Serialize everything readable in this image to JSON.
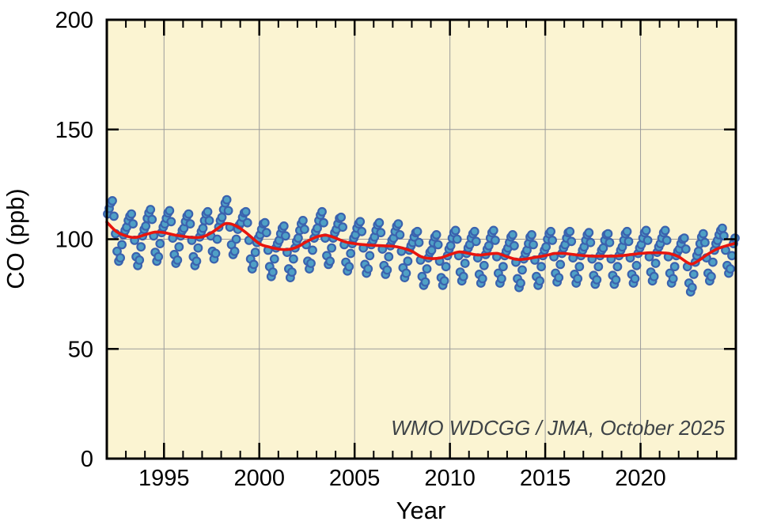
{
  "chart_data": {
    "type": "scatter",
    "title": "",
    "xlabel": "Year",
    "ylabel": "CO (ppb)",
    "annotation": "WMO WDCGG / JMA, October 2025",
    "xlim": [
      1992,
      2025
    ],
    "ylim": [
      0,
      200
    ],
    "grid": {
      "x": [
        1995,
        2000,
        2005,
        2010,
        2015,
        2020
      ],
      "y": [
        50,
        100,
        150
      ]
    },
    "x_major_ticks": [
      {
        "value": 1995,
        "label": "1995"
      },
      {
        "value": 2000,
        "label": "2000"
      },
      {
        "value": 2005,
        "label": "2005"
      },
      {
        "value": 2010,
        "label": "2010"
      },
      {
        "value": 2015,
        "label": "2015"
      },
      {
        "value": 2020,
        "label": "2020"
      }
    ],
    "x_minor_tick_years": [
      1993,
      1994,
      1996,
      1997,
      1998,
      1999,
      2001,
      2002,
      2003,
      2004,
      2006,
      2007,
      2008,
      2009,
      2011,
      2012,
      2013,
      2014,
      2016,
      2017,
      2018,
      2019,
      2021,
      2022,
      2023,
      2024
    ],
    "y_major_ticks": [
      {
        "value": 0,
        "label": "0"
      },
      {
        "value": 50,
        "label": "50"
      },
      {
        "value": 100,
        "label": "100"
      },
      {
        "value": 150,
        "label": "150"
      },
      {
        "value": 200,
        "label": "200"
      }
    ],
    "colors": {
      "plot_background": "#FBF4D2",
      "marker_fill": "#4FA0C6",
      "marker_edge": "#3A62AE",
      "trend_line": "#E8150D",
      "gridline": "#9B9B9B",
      "frame": "#000000",
      "annotation_text": "#3E4347"
    },
    "series": [
      {
        "name": "monthly-mean-co",
        "type": "scatter",
        "monthly_values_by_year": {
          "1992": [
            111.5,
            114,
            116.5,
            117.5,
            110.5,
            102.5,
            94.5,
            90,
            91.5,
            97.5,
            102,
            104
          ],
          "1993": [
            105.5,
            108.5,
            110.5,
            111.5,
            107,
            99.5,
            92,
            88,
            90.5,
            96.5,
            101.5,
            104.5
          ],
          "1994": [
            106,
            109.5,
            112,
            113.5,
            109,
            101.5,
            94,
            90,
            92,
            98,
            103,
            105.5
          ],
          "1995": [
            107,
            109.5,
            112,
            113,
            108,
            100.5,
            93,
            89,
            90.5,
            96.5,
            101.5,
            104
          ],
          "1996": [
            105,
            108,
            110.5,
            111.5,
            107,
            99.5,
            92,
            88,
            90,
            96,
            101,
            103.5
          ],
          "1997": [
            105,
            108.5,
            111.5,
            112.5,
            108.5,
            101.5,
            94.5,
            91,
            93.5,
            100,
            105.5,
            108.5
          ],
          "1998": [
            110,
            113.5,
            116.5,
            118,
            113,
            105.5,
            97.5,
            93,
            94.5,
            100,
            104.5,
            106.5
          ],
          "1999": [
            107.5,
            110,
            112,
            112.5,
            107.5,
            99.5,
            91,
            86.5,
            88.5,
            94,
            98.5,
            100.5
          ],
          "2000": [
            102,
            104.5,
            107,
            107.5,
            103,
            95,
            87.5,
            83,
            85,
            91,
            96,
            98
          ],
          "2001": [
            99.5,
            102.5,
            105,
            106,
            101.5,
            94,
            86.5,
            82.5,
            85,
            91,
            96,
            99
          ],
          "2002": [
            100.5,
            104,
            107,
            108.5,
            104.5,
            97.5,
            90,
            86.5,
            89,
            95,
            100.5,
            103.5
          ],
          "2003": [
            105,
            108.5,
            111,
            112.5,
            107.5,
            100.5,
            92.5,
            88.5,
            90,
            96,
            100.5,
            103
          ],
          "2004": [
            104.5,
            107,
            109.5,
            110,
            105.5,
            97.5,
            89.5,
            85.5,
            87.5,
            93.5,
            98,
            100.5
          ],
          "2005": [
            102,
            105,
            107,
            108,
            103.5,
            96,
            88.5,
            84.5,
            86.5,
            92.5,
            97.5,
            99.5
          ],
          "2006": [
            101,
            104,
            106.5,
            107.5,
            103,
            95.5,
            88,
            84,
            86,
            92,
            97,
            99.5
          ],
          "2007": [
            100.5,
            103.5,
            106,
            107,
            102,
            94.5,
            87,
            82.5,
            84.5,
            90,
            95,
            97
          ],
          "2008": [
            98.5,
            101,
            103,
            103.5,
            98.5,
            90.5,
            83,
            79,
            80.5,
            86.5,
            91.5,
            94
          ],
          "2009": [
            95,
            98.5,
            101,
            102,
            97.5,
            90,
            82.5,
            79,
            81,
            87.5,
            92.5,
            95.5
          ],
          "2010": [
            97,
            100.5,
            103,
            104,
            100,
            92.5,
            85,
            81,
            83,
            89,
            93.5,
            96
          ],
          "2011": [
            97.5,
            100.5,
            102.5,
            103.5,
            99,
            91.5,
            84,
            80,
            82,
            88,
            93,
            95.5
          ],
          "2012": [
            97,
            100.5,
            103,
            104,
            99.5,
            92,
            84.5,
            80,
            82,
            87.5,
            92.5,
            94.5
          ],
          "2013": [
            96,
            98.5,
            101,
            102,
            97,
            89.5,
            82,
            78,
            80,
            86,
            91,
            93.5
          ],
          "2014": [
            95,
            98,
            101,
            102,
            97.5,
            90.5,
            83,
            79,
            81,
            87.5,
            92.5,
            95
          ],
          "2015": [
            96.5,
            100,
            102.5,
            103.5,
            99.5,
            92,
            84.5,
            80.5,
            82.5,
            88.5,
            93.5,
            96
          ],
          "2016": [
            97.5,
            100.5,
            103,
            103.5,
            99,
            91.5,
            84,
            80,
            82,
            87.5,
            92.5,
            95
          ],
          "2017": [
            96.5,
            99.5,
            102,
            103,
            98.5,
            91,
            83.5,
            79.5,
            81.5,
            87.5,
            92.5,
            95
          ],
          "2018": [
            96,
            99.5,
            102,
            102.5,
            98.5,
            91,
            83.5,
            79.5,
            81.5,
            87.5,
            92.5,
            95
          ],
          "2019": [
            96.5,
            99.5,
            102.5,
            103.5,
            99,
            91.5,
            84,
            80,
            82,
            88,
            93.5,
            96
          ],
          "2020": [
            97.5,
            100.5,
            103,
            104,
            99.5,
            92,
            85,
            81,
            83,
            89,
            94,
            96.5
          ],
          "2021": [
            98,
            100.5,
            103,
            104,
            99.5,
            92,
            84.5,
            80,
            82,
            87.5,
            92.5,
            94.5
          ],
          "2022": [
            95.5,
            98,
            100,
            100.5,
            95.5,
            87.5,
            80,
            76,
            78,
            84,
            89.5,
            92.5
          ],
          "2023": [
            94.5,
            98,
            101,
            102.5,
            98.5,
            91.5,
            84.5,
            81,
            83,
            89.5,
            95,
            98
          ],
          "2024": [
            99.5,
            102,
            104,
            105,
            101.5,
            95,
            88,
            84.5,
            86.5,
            92.5,
            98,
            100.5
          ]
        }
      },
      {
        "name": "deseasonalized-trend",
        "type": "line",
        "points": [
          [
            1992.0,
            107.8
          ],
          [
            1992.5,
            103.5
          ],
          [
            1993.0,
            101.5
          ],
          [
            1993.5,
            100.8
          ],
          [
            1994.0,
            102.0
          ],
          [
            1994.5,
            103.2
          ],
          [
            1995.0,
            103.0
          ],
          [
            1995.5,
            102.0
          ],
          [
            1996.0,
            101.3
          ],
          [
            1996.5,
            100.8
          ],
          [
            1997.0,
            101.0
          ],
          [
            1997.5,
            103.0
          ],
          [
            1998.0,
            106.0
          ],
          [
            1998.3,
            107.2
          ],
          [
            1998.8,
            106.0
          ],
          [
            1999.3,
            103.0
          ],
          [
            2000.0,
            98.0
          ],
          [
            2000.5,
            96.5
          ],
          [
            2001.0,
            95.5
          ],
          [
            2001.5,
            95.3
          ],
          [
            2002.0,
            96.5
          ],
          [
            2002.5,
            99.0
          ],
          [
            2003.0,
            101.0
          ],
          [
            2003.5,
            101.8
          ],
          [
            2004.0,
            100.5
          ],
          [
            2004.5,
            98.8
          ],
          [
            2005.0,
            98.0
          ],
          [
            2005.5,
            97.5
          ],
          [
            2006.0,
            97.2
          ],
          [
            2006.5,
            97.0
          ],
          [
            2007.0,
            96.8
          ],
          [
            2007.5,
            96.0
          ],
          [
            2008.0,
            94.5
          ],
          [
            2008.5,
            92.0
          ],
          [
            2009.0,
            91.2
          ],
          [
            2009.5,
            91.5
          ],
          [
            2010.0,
            93.0
          ],
          [
            2010.5,
            94.2
          ],
          [
            2011.0,
            93.5
          ],
          [
            2011.5,
            92.8
          ],
          [
            2012.0,
            93.2
          ],
          [
            2012.5,
            93.5
          ],
          [
            2013.0,
            92.0
          ],
          [
            2013.5,
            90.8
          ],
          [
            2014.0,
            91.0
          ],
          [
            2014.5,
            91.8
          ],
          [
            2015.0,
            92.5
          ],
          [
            2015.5,
            93.5
          ],
          [
            2016.0,
            93.5
          ],
          [
            2016.5,
            93.0
          ],
          [
            2017.0,
            92.5
          ],
          [
            2017.5,
            92.3
          ],
          [
            2018.0,
            92.3
          ],
          [
            2018.5,
            92.3
          ],
          [
            2019.0,
            92.5
          ],
          [
            2019.5,
            93.0
          ],
          [
            2020.0,
            93.5
          ],
          [
            2020.5,
            93.8
          ],
          [
            2021.0,
            93.8
          ],
          [
            2021.5,
            93.5
          ],
          [
            2022.0,
            92.0
          ],
          [
            2022.6,
            88.8
          ],
          [
            2023.0,
            90.0
          ],
          [
            2023.5,
            93.0
          ],
          [
            2024.0,
            95.5
          ],
          [
            2024.5,
            97.0
          ],
          [
            2025.0,
            98.2
          ]
        ]
      }
    ]
  }
}
